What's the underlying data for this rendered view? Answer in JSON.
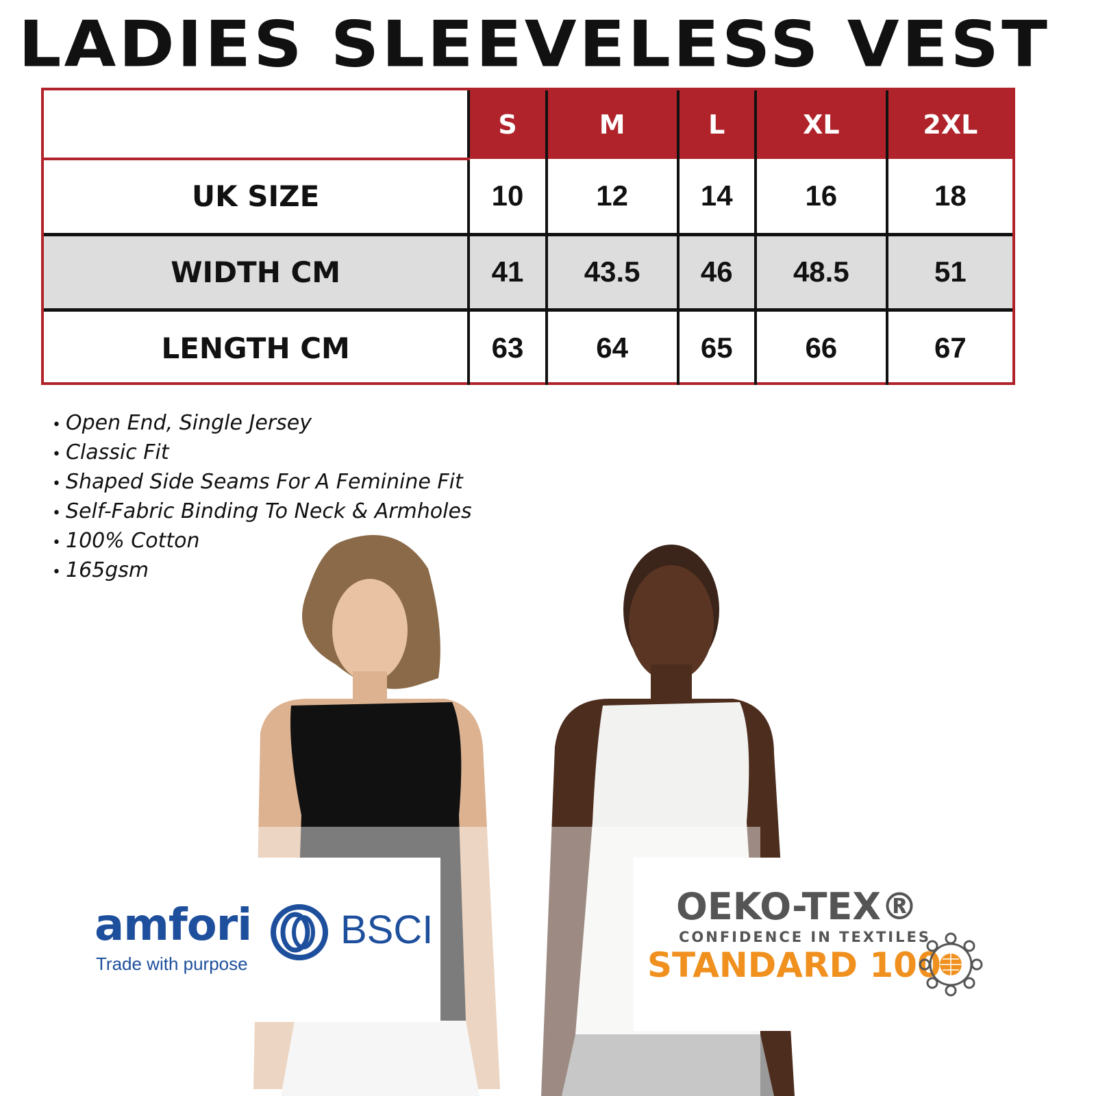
{
  "title": "LADIES SLEEVELESS VEST",
  "size_chart": {
    "sizes": [
      "S",
      "M",
      "L",
      "XL",
      "2XL"
    ],
    "rows": [
      {
        "label": "UK SIZE",
        "values": [
          "10",
          "12",
          "14",
          "16",
          "18"
        ]
      },
      {
        "label": "WIDTH CM",
        "values": [
          "41",
          "43.5",
          "46",
          "48.5",
          "51"
        ]
      },
      {
        "label": "LENGTH CM",
        "values": [
          "63",
          "64",
          "65",
          "66",
          "67"
        ]
      }
    ]
  },
  "features": [
    "Open End, Single Jersey",
    "Classic Fit",
    "Shaped Side Seams For A Feminine Fit",
    "Self-Fabric Binding To Neck & Armholes",
    "100% Cotton",
    "165gsm"
  ],
  "logos": {
    "amfori": {
      "name": "amfori",
      "mark": "BSCI",
      "tagline": "Trade with purpose",
      "color": "#1d4f9c"
    },
    "oeko": {
      "name": "OEKO-TEX®",
      "tagline": "CONFIDENCE IN TEXTILES",
      "standard": "STANDARD 100",
      "grey": "#555555",
      "orange": "#f0901e"
    }
  },
  "colors": {
    "header_red": "#b0232a",
    "grey_row": "#dddddd"
  }
}
